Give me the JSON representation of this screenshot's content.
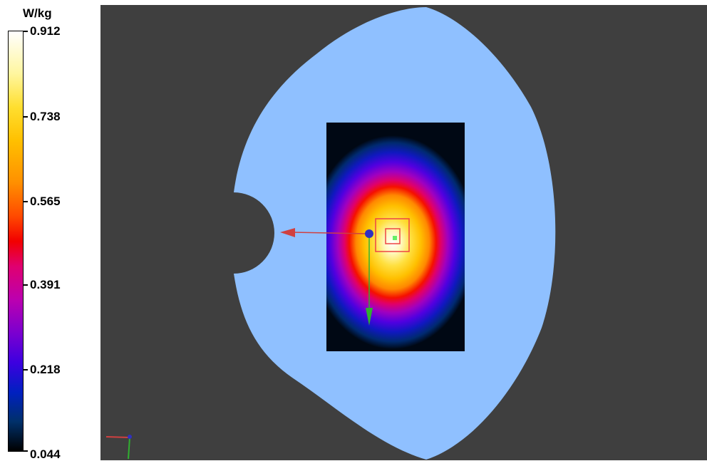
{
  "legend": {
    "unit": "W/kg",
    "ticks": [
      "0.912",
      "0.738",
      "0.565",
      "0.391",
      "0.218",
      "0.044"
    ]
  },
  "colors": {
    "viewport_bg": "#3f3f3f",
    "phantom": "#8fc0ff",
    "measurement_box": "#ee4444",
    "x_axis": "#d04040",
    "y_axis": "#30b030",
    "origin": "#3030c0"
  },
  "icons": {
    "origin": "origin-marker-icon",
    "axes": "axes-triad-icon"
  }
}
